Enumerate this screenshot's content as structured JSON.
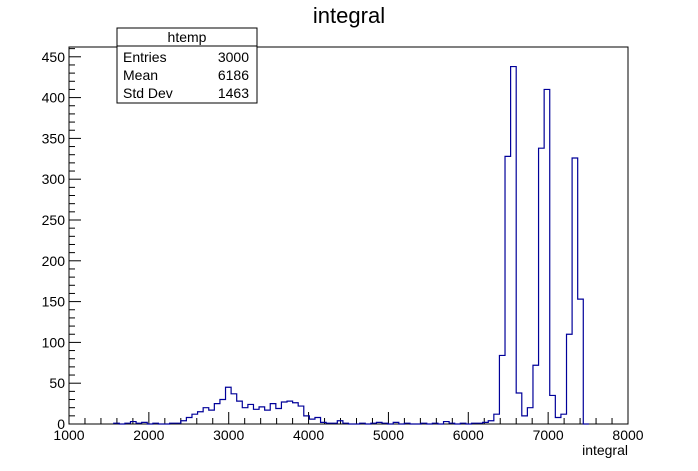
{
  "chart_data": {
    "type": "histogram",
    "title": "integral",
    "xlabel": "integral",
    "ylabel": "",
    "xlim": [
      1000,
      8000
    ],
    "ylim": [
      0,
      462
    ],
    "x_ticks": [
      1000,
      2000,
      3000,
      4000,
      5000,
      6000,
      7000,
      8000
    ],
    "y_ticks": [
      0,
      50,
      100,
      150,
      200,
      250,
      300,
      350,
      400,
      450
    ],
    "bin_width": 70,
    "bins": [
      {
        "x": 1560,
        "y": 1
      },
      {
        "x": 1630,
        "y": 0
      },
      {
        "x": 1700,
        "y": 1
      },
      {
        "x": 1770,
        "y": 3
      },
      {
        "x": 1840,
        "y": 1
      },
      {
        "x": 1910,
        "y": 2
      },
      {
        "x": 1980,
        "y": 0
      },
      {
        "x": 2050,
        "y": 1
      },
      {
        "x": 2120,
        "y": 0
      },
      {
        "x": 2190,
        "y": 0
      },
      {
        "x": 2260,
        "y": 1
      },
      {
        "x": 2330,
        "y": 1
      },
      {
        "x": 2400,
        "y": 4
      },
      {
        "x": 2470,
        "y": 8
      },
      {
        "x": 2540,
        "y": 12
      },
      {
        "x": 2610,
        "y": 15
      },
      {
        "x": 2680,
        "y": 20
      },
      {
        "x": 2750,
        "y": 17
      },
      {
        "x": 2820,
        "y": 25
      },
      {
        "x": 2890,
        "y": 30
      },
      {
        "x": 2960,
        "y": 45
      },
      {
        "x": 3030,
        "y": 37
      },
      {
        "x": 3100,
        "y": 28
      },
      {
        "x": 3170,
        "y": 20
      },
      {
        "x": 3240,
        "y": 24
      },
      {
        "x": 3310,
        "y": 18
      },
      {
        "x": 3380,
        "y": 21
      },
      {
        "x": 3450,
        "y": 17
      },
      {
        "x": 3520,
        "y": 25
      },
      {
        "x": 3590,
        "y": 19
      },
      {
        "x": 3660,
        "y": 27
      },
      {
        "x": 3730,
        "y": 28
      },
      {
        "x": 3800,
        "y": 26
      },
      {
        "x": 3870,
        "y": 22
      },
      {
        "x": 3940,
        "y": 10
      },
      {
        "x": 4010,
        "y": 6
      },
      {
        "x": 4080,
        "y": 8
      },
      {
        "x": 4150,
        "y": 2
      },
      {
        "x": 4220,
        "y": 1
      },
      {
        "x": 4290,
        "y": 1
      },
      {
        "x": 4360,
        "y": 4
      },
      {
        "x": 4430,
        "y": 1
      },
      {
        "x": 4500,
        "y": 0
      },
      {
        "x": 4570,
        "y": 0
      },
      {
        "x": 4640,
        "y": 1
      },
      {
        "x": 4710,
        "y": 0
      },
      {
        "x": 4780,
        "y": 1
      },
      {
        "x": 4850,
        "y": 2
      },
      {
        "x": 4920,
        "y": 1
      },
      {
        "x": 4990,
        "y": 0
      },
      {
        "x": 5060,
        "y": 2
      },
      {
        "x": 5130,
        "y": 0
      },
      {
        "x": 5200,
        "y": 1
      },
      {
        "x": 5270,
        "y": 0
      },
      {
        "x": 5340,
        "y": 0
      },
      {
        "x": 5410,
        "y": 1
      },
      {
        "x": 5480,
        "y": 0
      },
      {
        "x": 5550,
        "y": 1
      },
      {
        "x": 5620,
        "y": 0
      },
      {
        "x": 5690,
        "y": 3
      },
      {
        "x": 5760,
        "y": 1
      },
      {
        "x": 5830,
        "y": 0
      },
      {
        "x": 5900,
        "y": 1
      },
      {
        "x": 5970,
        "y": 0
      },
      {
        "x": 6040,
        "y": 1
      },
      {
        "x": 6110,
        "y": 1
      },
      {
        "x": 6180,
        "y": 2
      },
      {
        "x": 6250,
        "y": 4
      },
      {
        "x": 6320,
        "y": 12
      },
      {
        "x": 6390,
        "y": 84
      },
      {
        "x": 6460,
        "y": 328
      },
      {
        "x": 6530,
        "y": 438
      },
      {
        "x": 6600,
        "y": 38
      },
      {
        "x": 6670,
        "y": 10
      },
      {
        "x": 6740,
        "y": 20
      },
      {
        "x": 6810,
        "y": 72
      },
      {
        "x": 6880,
        "y": 338
      },
      {
        "x": 6950,
        "y": 410
      },
      {
        "x": 7020,
        "y": 35
      },
      {
        "x": 7090,
        "y": 8
      },
      {
        "x": 7160,
        "y": 12
      },
      {
        "x": 7230,
        "y": 110
      },
      {
        "x": 7300,
        "y": 326
      },
      {
        "x": 7370,
        "y": 153
      },
      {
        "x": 7440,
        "y": 0
      }
    ],
    "line_color": "#000099",
    "grid": false,
    "stats_box": {
      "name": "htemp",
      "rows": [
        {
          "label": "Entries",
          "value": "3000"
        },
        {
          "label": "Mean",
          "value": "6186"
        },
        {
          "label": "Std Dev",
          "value": "1463"
        }
      ],
      "placement": "top-left"
    }
  }
}
